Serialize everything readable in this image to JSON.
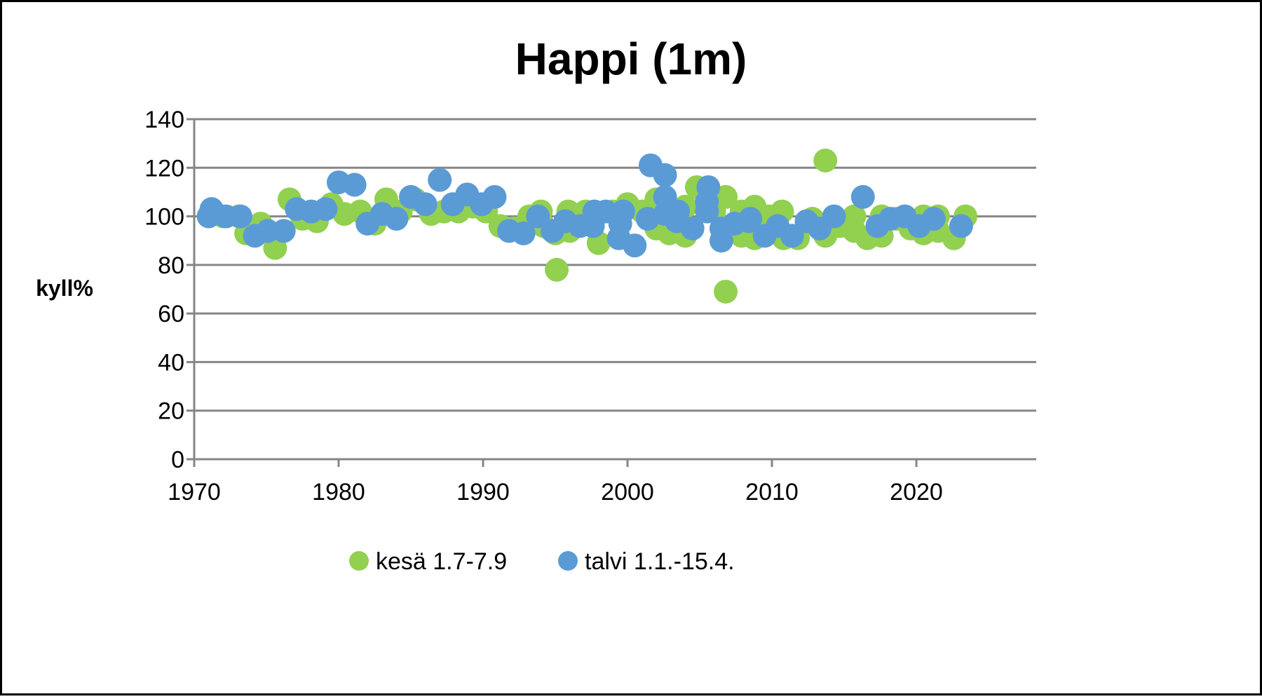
{
  "chart_data": {
    "type": "scatter",
    "title": "Happi (1m)",
    "xlabel": "",
    "ylabel": "kyll%",
    "xlim": [
      1970,
      2028
    ],
    "ylim": [
      0,
      140
    ],
    "xticks": [
      1970,
      1980,
      1990,
      2000,
      2010,
      2020
    ],
    "yticks": [
      0,
      20,
      40,
      60,
      80,
      100,
      120,
      140
    ],
    "grid": "horizontal",
    "legend": "bottom",
    "series": [
      {
        "name": "kesä 1.7-7.9",
        "color": "#92d050",
        "points": [
          [
            1971.1,
            101
          ],
          [
            1972.0,
            100
          ],
          [
            1973.1,
            100
          ],
          [
            1973.6,
            93
          ],
          [
            1974.6,
            97
          ],
          [
            1975.6,
            87
          ],
          [
            1976.6,
            107
          ],
          [
            1977.5,
            99
          ],
          [
            1978.5,
            98
          ],
          [
            1979.5,
            105
          ],
          [
            1980.4,
            101
          ],
          [
            1981.5,
            102
          ],
          [
            1982.5,
            97
          ],
          [
            1983.3,
            107
          ],
          [
            1984.3,
            102
          ],
          [
            1985.3,
            107
          ],
          [
            1986.4,
            101
          ],
          [
            1987.3,
            102
          ],
          [
            1988.3,
            102
          ],
          [
            1989.3,
            104
          ],
          [
            1990.2,
            102
          ],
          [
            1991.2,
            96
          ],
          [
            1992.2,
            95
          ],
          [
            1993.2,
            100
          ],
          [
            1994.0,
            102
          ],
          [
            1994.2,
            96
          ],
          [
            1995.0,
            93
          ],
          [
            1995.1,
            78
          ],
          [
            1995.9,
            102
          ],
          [
            1996.0,
            94
          ],
          [
            1997.1,
            102
          ],
          [
            1998.0,
            89
          ],
          [
            1999.0,
            102
          ],
          [
            2000.0,
            105
          ],
          [
            2001.0,
            102
          ],
          [
            2002.0,
            107
          ],
          [
            2002.0,
            95
          ],
          [
            2002.9,
            93
          ],
          [
            2004.0,
            104
          ],
          [
            2004.0,
            92
          ],
          [
            2004.8,
            112
          ],
          [
            2006.0,
            102
          ],
          [
            2006.8,
            108
          ],
          [
            2006.8,
            69
          ],
          [
            2007.9,
            92
          ],
          [
            2007.9,
            102
          ],
          [
            2008.8,
            104
          ],
          [
            2008.8,
            91
          ],
          [
            2009.8,
            100
          ],
          [
            2010.7,
            102
          ],
          [
            2010.8,
            91
          ],
          [
            2011.8,
            91
          ],
          [
            2012.8,
            99
          ],
          [
            2013.7,
            123
          ],
          [
            2013.7,
            92
          ],
          [
            2014.7,
            96
          ],
          [
            2015.7,
            100
          ],
          [
            2015.7,
            94
          ],
          [
            2016.6,
            91
          ],
          [
            2017.6,
            100
          ],
          [
            2017.6,
            92
          ],
          [
            2018.6,
            99
          ],
          [
            2019.6,
            95
          ],
          [
            2020.5,
            100
          ],
          [
            2020.5,
            93
          ],
          [
            2021.5,
            100
          ],
          [
            2021.5,
            94
          ],
          [
            2022.6,
            91
          ],
          [
            2023.4,
            100
          ]
        ]
      },
      {
        "name": "talvi 1.1.-15.4.",
        "color": "#5b9bd5",
        "points": [
          [
            1971.0,
            100
          ],
          [
            1971.2,
            103
          ],
          [
            1972.2,
            100
          ],
          [
            1973.2,
            100
          ],
          [
            1974.2,
            92
          ],
          [
            1975.1,
            94
          ],
          [
            1976.2,
            94
          ],
          [
            1977.1,
            103
          ],
          [
            1978.1,
            102
          ],
          [
            1979.1,
            103
          ],
          [
            1980.0,
            114
          ],
          [
            1981.1,
            113
          ],
          [
            1982.0,
            97
          ],
          [
            1983.0,
            101
          ],
          [
            1984.0,
            99
          ],
          [
            1985.0,
            108
          ],
          [
            1986.0,
            105
          ],
          [
            1987.0,
            115
          ],
          [
            1987.9,
            105
          ],
          [
            1988.9,
            109
          ],
          [
            1989.9,
            105
          ],
          [
            1990.8,
            108
          ],
          [
            1991.8,
            94
          ],
          [
            1992.8,
            93
          ],
          [
            1993.8,
            100
          ],
          [
            1994.8,
            94
          ],
          [
            1995.7,
            98
          ],
          [
            1996.7,
            96
          ],
          [
            1997.6,
            96
          ],
          [
            1997.7,
            102
          ],
          [
            1998.5,
            102
          ],
          [
            1999.4,
            91
          ],
          [
            1999.5,
            97
          ],
          [
            1999.7,
            102
          ],
          [
            2000.5,
            88
          ],
          [
            2001.4,
            99
          ],
          [
            2001.6,
            121
          ],
          [
            2002.6,
            117
          ],
          [
            2002.6,
            108
          ],
          [
            2002.6,
            101
          ],
          [
            2003.4,
            98
          ],
          [
            2003.5,
            102
          ],
          [
            2004.5,
            95
          ],
          [
            2005.5,
            102
          ],
          [
            2005.6,
            112
          ],
          [
            2005.5,
            106
          ],
          [
            2006.5,
            90
          ],
          [
            2006.5,
            95
          ],
          [
            2007.4,
            97
          ],
          [
            2008.4,
            98
          ],
          [
            2008.5,
            99
          ],
          [
            2009.5,
            92
          ],
          [
            2010.4,
            96
          ],
          [
            2011.4,
            92
          ],
          [
            2012.4,
            98
          ],
          [
            2013.3,
            95
          ],
          [
            2014.3,
            100
          ],
          [
            2016.3,
            108
          ],
          [
            2017.3,
            96
          ],
          [
            2018.2,
            99
          ],
          [
            2019.2,
            100
          ],
          [
            2020.2,
            96
          ],
          [
            2021.2,
            99
          ],
          [
            2023.1,
            96
          ]
        ]
      }
    ]
  }
}
